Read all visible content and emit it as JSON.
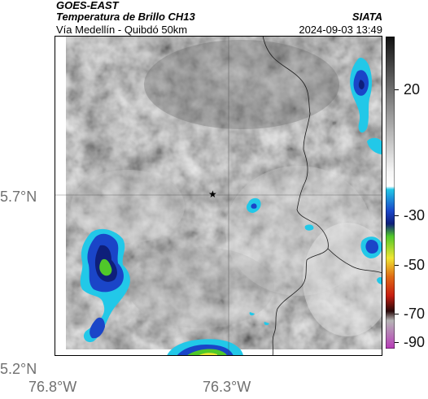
{
  "header": {
    "satellite": "GOES-EAST",
    "product": "Temperatura de Brillo CH13",
    "organization": "SIATA",
    "location": "Vía Medellín - Quibdó 50km",
    "datetime": "2024-09-03 13:49"
  },
  "axes": {
    "lat_labels": [
      "5.7°N",
      "5.2°N"
    ],
    "lon_labels": [
      "76.8°W",
      "76.3°W"
    ]
  },
  "colorbar": {
    "ticks": [
      "20",
      "-30",
      "-50",
      "-70",
      "-90"
    ]
  },
  "marker": {
    "name": "reference-point-star",
    "symbol": "★"
  },
  "colors": {
    "cold_cloud_cyan": "#22c8e8",
    "cold_cloud_blue": "#1a45c8",
    "cold_cloud_navy": "#0e1f7a",
    "cold_cloud_green": "#50c82a",
    "very_cold_yellow": "#f0e632",
    "very_cold_red": "#c81e12",
    "coldest_magenta": "#b83ab8"
  }
}
